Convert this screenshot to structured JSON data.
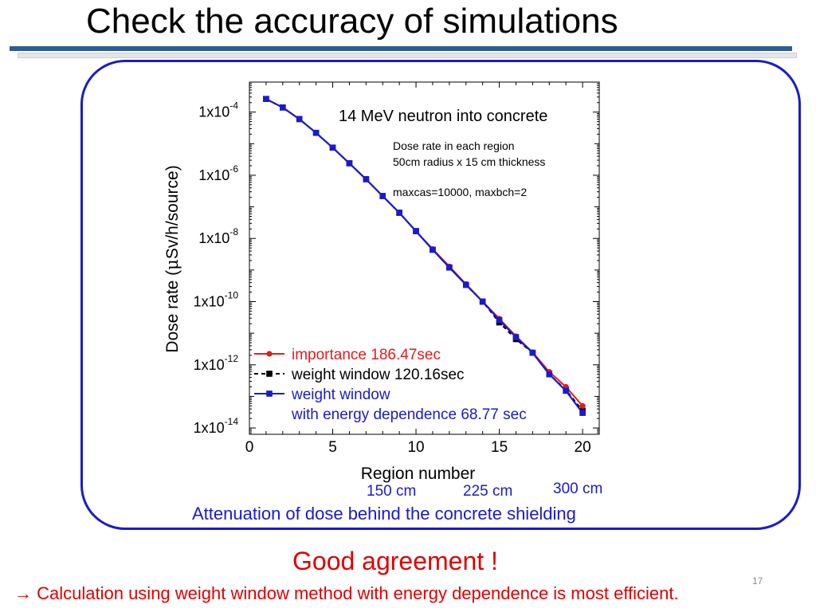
{
  "slide": {
    "title": "Check the accuracy of simulations",
    "region_notes": [
      "150 cm",
      "225 cm",
      "300 cm"
    ],
    "caption": "Attenuation of dose behind the concrete shielding",
    "agreement": "Good agreement !",
    "conclusion": "→ Calculation using weight window method with energy dependence is most efficient.",
    "page_number": "17"
  },
  "chart_data": {
    "type": "line",
    "title": "14 MeV neutron into concrete",
    "annotations": [
      "Dose rate in each region",
      "50cm radius x 15 cm thickness",
      "maxcas=10000, maxbch=2"
    ],
    "xlabel": "Region number",
    "ylabel_parts": [
      "Dose rate (",
      "μ",
      "Sv/h/source)"
    ],
    "xlim": [
      0,
      21
    ],
    "ylim_log10": [
      -14.2,
      -3.05
    ],
    "y_scale": "log",
    "x_ticks": [
      0,
      5,
      10,
      15,
      20
    ],
    "y_ticks_log10": [
      -4,
      -6,
      -8,
      -10,
      -12,
      -14
    ],
    "y_tick_base": "1x10",
    "grid": false,
    "legend_position": "bottom-left",
    "series": [
      {
        "name": "importance 186.47sec",
        "color": "#e81a1a",
        "marker": "circle",
        "dash": "solid",
        "x": [
          1,
          2,
          3,
          4,
          5,
          6,
          7,
          8,
          9,
          10,
          11,
          12,
          13,
          14,
          15,
          16,
          17,
          18,
          19,
          20
        ],
        "y": [
          0.00026,
          0.00014,
          6e-05,
          2.2e-05,
          7.5e-06,
          2.4e-06,
          7.5e-07,
          2.2e-07,
          6.5e-08,
          1.7e-08,
          4.6e-09,
          1.3e-09,
          3.6e-10,
          1e-10,
          2.9e-11,
          8e-12,
          2.5e-12,
          6e-13,
          2e-13,
          5e-14
        ]
      },
      {
        "name": "weight window 120.16sec",
        "color": "#000000",
        "marker": "square",
        "dash": "dashed",
        "x": [
          1,
          2,
          3,
          4,
          5,
          6,
          7,
          8,
          9,
          10,
          11,
          12,
          13,
          14,
          15,
          16,
          17,
          18,
          19,
          20
        ],
        "y": [
          0.00026,
          0.00014,
          6e-05,
          2.2e-05,
          7.5e-06,
          2.4e-06,
          7.5e-07,
          2.2e-07,
          6.5e-08,
          1.7e-08,
          4.4e-09,
          1.2e-09,
          3.4e-10,
          1e-10,
          2.2e-11,
          6.5e-12,
          2.4e-12,
          5e-13,
          1.6e-13,
          3.5e-14
        ]
      },
      {
        "name": "weight window",
        "name_line2": "with energy dependence 68.77 sec",
        "color": "#1a1ad0",
        "marker": "square",
        "dash": "solid",
        "x": [
          1,
          2,
          3,
          4,
          5,
          6,
          7,
          8,
          9,
          10,
          11,
          12,
          13,
          14,
          15,
          16,
          17,
          18,
          19,
          20
        ],
        "y": [
          0.00026,
          0.00014,
          6e-05,
          2.2e-05,
          7.5e-06,
          2.4e-06,
          7.5e-07,
          2.2e-07,
          6.5e-08,
          1.7e-08,
          4.4e-09,
          1.2e-09,
          3.4e-10,
          1e-10,
          2.6e-11,
          7.5e-12,
          2.4e-12,
          5e-13,
          1.5e-13,
          3e-14
        ]
      }
    ]
  }
}
